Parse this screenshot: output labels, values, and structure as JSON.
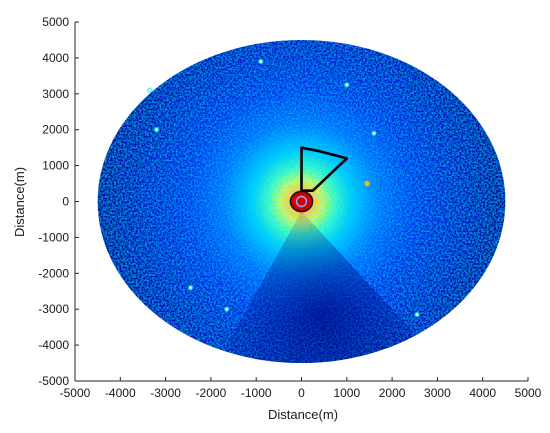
{
  "chart_data": {
    "type": "heatmap",
    "title": "",
    "xlabel": "Distance(m)",
    "ylabel": "Distance(m)",
    "xlim": [
      -5000,
      5000
    ],
    "ylim": [
      -5000,
      5000
    ],
    "xticks": [
      -5000,
      -4000,
      -3000,
      -2000,
      -1000,
      0,
      1000,
      2000,
      3000,
      4000,
      5000
    ],
    "yticks": [
      -5000,
      -4000,
      -3000,
      -2000,
      -1000,
      0,
      1000,
      2000,
      3000,
      4000,
      5000
    ],
    "grid": false,
    "colormap": "jet",
    "scan_extent": {
      "x_radius": 4500,
      "y_radius": 4500,
      "center": [
        0,
        0
      ]
    },
    "outlined_sector": [
      [
        0,
        300
      ],
      [
        0,
        1500
      ],
      [
        400,
        1400
      ],
      [
        1000,
        1200
      ],
      [
        250,
        300
      ]
    ],
    "center_marker": {
      "x": 0,
      "y": 0,
      "color": "#d00000"
    },
    "hot_spots": [
      {
        "x": 1450,
        "y": 500
      },
      {
        "x": 2550,
        "y": -3150
      },
      {
        "x": -1650,
        "y": -3000
      },
      {
        "x": -2450,
        "y": -2400
      },
      {
        "x": 1000,
        "y": 3250
      },
      {
        "x": -3350,
        "y": 3100
      },
      {
        "x": -3200,
        "y": 2000
      },
      {
        "x": 1600,
        "y": 1900
      },
      {
        "x": -900,
        "y": 3900
      }
    ],
    "colors": {
      "axis": "#262626",
      "sector_outline": "#000000",
      "background": "#ffffff"
    }
  }
}
